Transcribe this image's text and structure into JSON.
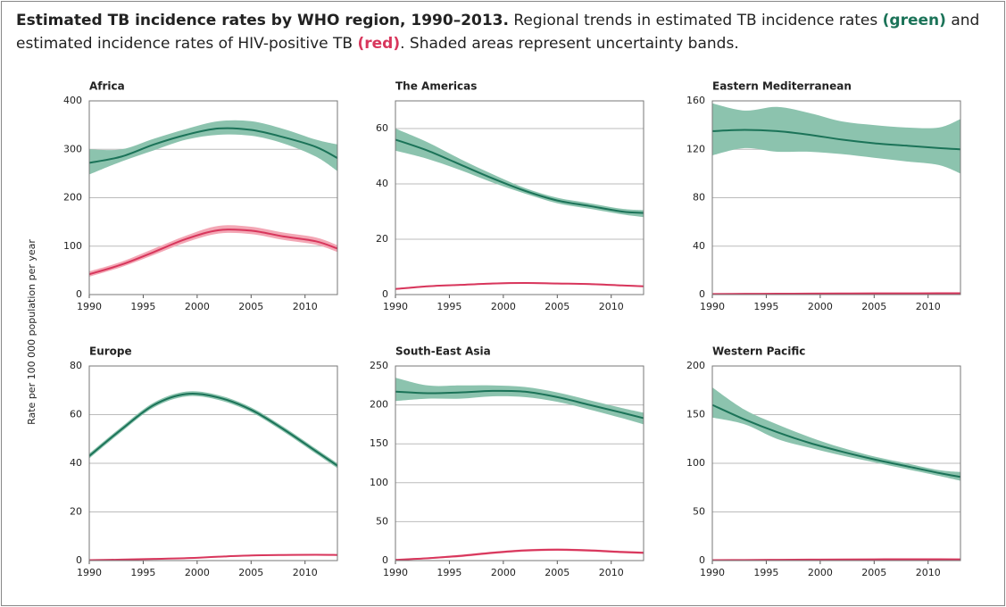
{
  "header": {
    "title": "Estimated TB incidence rates by WHO region, 1990–2013.",
    "text_1": "Regional trends in estimated TB incidence rates",
    "green_label": "(green)",
    "text_2": "and estimated incidence rates of HIV-positive TB",
    "red_label": "(red)",
    "text_3": ". Shaded areas represent uncertainty bands."
  },
  "y_axis_label": "Rate per 100 000 population per year",
  "chart_data": [
    {
      "type": "line",
      "title": "Africa",
      "x": [
        1990,
        1993,
        1996,
        1999,
        2002,
        2005,
        2008,
        2011,
        2013
      ],
      "xlim": [
        1990,
        2013
      ],
      "xticks": [
        1990,
        1995,
        2000,
        2005,
        2010
      ],
      "ylim": [
        0,
        400
      ],
      "yticks": [
        0,
        100,
        200,
        300,
        400
      ],
      "grid": true,
      "series": [
        {
          "color": "#1b7358",
          "band_color": "#8cc3ae",
          "values": [
            272,
            285,
            310,
            330,
            343,
            340,
            325,
            305,
            282
          ],
          "lower": [
            248,
            275,
            298,
            320,
            330,
            328,
            312,
            285,
            255
          ],
          "upper": [
            300,
            300,
            322,
            342,
            358,
            358,
            342,
            320,
            310
          ]
        },
        {
          "color": "#d8365c",
          "band_color": "#f3a7b5",
          "values": [
            42,
            62,
            88,
            115,
            133,
            132,
            120,
            110,
            95
          ],
          "lower": [
            37,
            57,
            82,
            108,
            126,
            125,
            113,
            103,
            88
          ],
          "upper": [
            48,
            68,
            95,
            122,
            142,
            140,
            128,
            118,
            102
          ]
        }
      ]
    },
    {
      "type": "line",
      "title": "The Americas",
      "x": [
        1990,
        1993,
        1996,
        1999,
        2002,
        2005,
        2008,
        2011,
        2013
      ],
      "xlim": [
        1990,
        2013
      ],
      "xticks": [
        1990,
        1995,
        2000,
        2005,
        2010
      ],
      "ylim": [
        0,
        70
      ],
      "yticks": [
        0,
        20,
        40,
        60
      ],
      "grid": true,
      "series": [
        {
          "color": "#1b7358",
          "band_color": "#8cc3ae",
          "values": [
            56,
            52,
            47,
            42,
            37.5,
            34,
            32,
            30,
            29.5
          ],
          "lower": [
            52,
            49,
            45,
            40.5,
            36.5,
            33,
            31,
            29,
            28
          ],
          "upper": [
            60,
            55,
            49,
            43.5,
            38.5,
            35,
            33,
            31,
            30.5
          ]
        },
        {
          "color": "#d8365c",
          "band_color": "#f3a7b5",
          "values": [
            2,
            3,
            3.5,
            4,
            4.2,
            4,
            3.8,
            3.3,
            3
          ],
          "lower": [
            1.8,
            2.8,
            3.3,
            3.8,
            4,
            3.8,
            3.6,
            3.1,
            2.8
          ],
          "upper": [
            2.3,
            3.3,
            3.8,
            4.3,
            4.5,
            4.3,
            4.1,
            3.6,
            3.3
          ]
        }
      ]
    },
    {
      "type": "line",
      "title": "Eastern Mediterranean",
      "x": [
        1990,
        1993,
        1996,
        1999,
        2002,
        2005,
        2008,
        2011,
        2013
      ],
      "xlim": [
        1990,
        2013
      ],
      "xticks": [
        1990,
        1995,
        2000,
        2005,
        2010
      ],
      "ylim": [
        0,
        160
      ],
      "yticks": [
        0,
        40,
        80,
        120,
        160
      ],
      "grid": true,
      "series": [
        {
          "color": "#1b7358",
          "band_color": "#8cc3ae",
          "values": [
            135,
            136,
            135,
            132,
            128,
            125,
            123,
            121,
            120
          ],
          "lower": [
            115,
            121,
            118,
            118,
            116,
            113,
            110,
            107,
            100
          ],
          "upper": [
            158,
            152,
            155,
            150,
            143,
            140,
            138,
            138,
            145
          ]
        },
        {
          "color": "#d8365c",
          "band_color": "#f3a7b5",
          "values": [
            0.5,
            0.6,
            0.7,
            0.8,
            0.9,
            1,
            1,
            1.1,
            1.1
          ],
          "lower": [
            0.2,
            0.3,
            0.4,
            0.5,
            0.6,
            0.7,
            0.7,
            0.8,
            0.8
          ],
          "upper": [
            0.8,
            0.9,
            1,
            1.1,
            1.2,
            1.3,
            1.3,
            1.4,
            1.4
          ]
        }
      ]
    },
    {
      "type": "line",
      "title": "Europe",
      "x": [
        1990,
        1993,
        1996,
        1999,
        2002,
        2005,
        2008,
        2011,
        2013
      ],
      "xlim": [
        1990,
        2013
      ],
      "xticks": [
        1990,
        1995,
        2000,
        2005,
        2010
      ],
      "ylim": [
        0,
        80
      ],
      "yticks": [
        0,
        20,
        40,
        60,
        80
      ],
      "grid": true,
      "series": [
        {
          "color": "#1b7358",
          "band_color": "#8cc3ae",
          "values": [
            43,
            54,
            64,
            68.5,
            67,
            62,
            54,
            45,
            39
          ],
          "lower": [
            42,
            53,
            63,
            67.5,
            66,
            61,
            53,
            44,
            38
          ],
          "upper": [
            44,
            55,
            65,
            69.5,
            68,
            63,
            55,
            46,
            40
          ]
        },
        {
          "color": "#d8365c",
          "band_color": "#f3a7b5",
          "values": [
            0.2,
            0.4,
            0.7,
            1,
            1.6,
            2.1,
            2.3,
            2.4,
            2.3
          ],
          "lower": [
            0.1,
            0.2,
            0.5,
            0.8,
            1.3,
            1.8,
            2,
            2.1,
            2
          ],
          "upper": [
            0.4,
            0.6,
            0.9,
            1.3,
            1.9,
            2.4,
            2.6,
            2.7,
            2.6
          ]
        }
      ]
    },
    {
      "type": "line",
      "title": "South-East Asia",
      "x": [
        1990,
        1993,
        1996,
        1999,
        2002,
        2005,
        2008,
        2011,
        2013
      ],
      "xlim": [
        1990,
        2013
      ],
      "xticks": [
        1990,
        1995,
        2000,
        2005,
        2010
      ],
      "ylim": [
        0,
        250
      ],
      "yticks": [
        0,
        50,
        100,
        150,
        200,
        250
      ],
      "grid": true,
      "series": [
        {
          "color": "#1b7358",
          "band_color": "#8cc3ae",
          "values": [
            217,
            215,
            216,
            218,
            217,
            210,
            200,
            190,
            183
          ],
          "lower": [
            205,
            208,
            208,
            211,
            210,
            204,
            194,
            183,
            175
          ],
          "upper": [
            235,
            225,
            225,
            225,
            223,
            216,
            206,
            196,
            190
          ]
        },
        {
          "color": "#d8365c",
          "band_color": "#f3a7b5",
          "values": [
            1,
            3,
            6,
            10,
            13,
            14,
            13,
            11,
            10
          ],
          "lower": [
            0.5,
            2,
            4.5,
            8.5,
            11.5,
            12.5,
            11.5,
            9.5,
            8.5
          ],
          "upper": [
            1.5,
            4,
            7.5,
            11.5,
            14.5,
            15.5,
            14.5,
            12.5,
            11.5
          ]
        }
      ]
    },
    {
      "type": "line",
      "title": "Western Pacific",
      "x": [
        1990,
        1993,
        1996,
        1999,
        2002,
        2005,
        2008,
        2011,
        2013
      ],
      "xlim": [
        1990,
        2013
      ],
      "xticks": [
        1990,
        1995,
        2000,
        2005,
        2010
      ],
      "ylim": [
        0,
        200
      ],
      "yticks": [
        0,
        50,
        100,
        150,
        200
      ],
      "grid": true,
      "series": [
        {
          "color": "#1b7358",
          "band_color": "#8cc3ae",
          "values": [
            160,
            145,
            132,
            121,
            112,
            104,
            97,
            90,
            86
          ],
          "lower": [
            147,
            140,
            125,
            116,
            108,
            101,
            94,
            87,
            82
          ],
          "upper": [
            178,
            155,
            140,
            127,
            116,
            107,
            100,
            93,
            91
          ]
        },
        {
          "color": "#d8365c",
          "band_color": "#f3a7b5",
          "values": [
            0.5,
            0.6,
            0.8,
            1,
            1.2,
            1.3,
            1.4,
            1.4,
            1.3
          ],
          "lower": [
            0.2,
            0.3,
            0.5,
            0.7,
            0.9,
            1,
            1.1,
            1.1,
            1
          ],
          "upper": [
            0.8,
            0.9,
            1.1,
            1.3,
            1.5,
            1.6,
            1.7,
            1.7,
            1.6
          ]
        }
      ]
    }
  ]
}
